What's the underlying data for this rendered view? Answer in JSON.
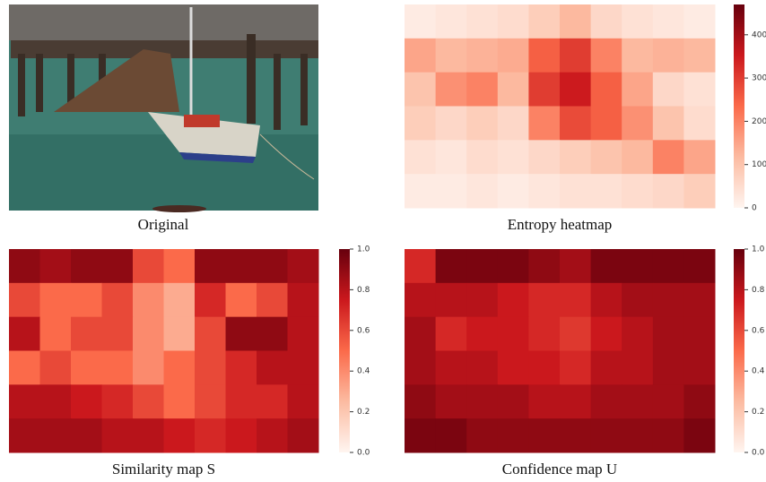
{
  "colormap": [
    "#fff5f0",
    "#fcbba1",
    "#fb6a4a",
    "#cb181d",
    "#67000d"
  ],
  "panels": [
    {
      "caption": "Original"
    },
    {
      "caption": "Entropy heatmap",
      "clim": [
        0,
        470
      ],
      "cticks": [
        0,
        100,
        200,
        300,
        400
      ],
      "values": [
        [
          20,
          30,
          40,
          50,
          80,
          120,
          60,
          40,
          30,
          20
        ],
        [
          150,
          120,
          130,
          140,
          250,
          300,
          200,
          120,
          130,
          120
        ],
        [
          100,
          180,
          200,
          120,
          300,
          350,
          250,
          150,
          60,
          40
        ],
        [
          80,
          60,
          80,
          60,
          200,
          280,
          250,
          180,
          100,
          50
        ],
        [
          40,
          30,
          50,
          40,
          60,
          80,
          100,
          120,
          200,
          150
        ],
        [
          20,
          20,
          30,
          20,
          30,
          40,
          40,
          50,
          60,
          80
        ]
      ]
    },
    {
      "caption": "Similarity map S",
      "clim": [
        0,
        1
      ],
      "cticks": [
        {
          "value": 0,
          "label": "0.0"
        },
        {
          "value": 0.2,
          "label": "0.2"
        },
        {
          "value": 0.4,
          "label": "0.4"
        },
        {
          "value": 0.6,
          "label": "0.6"
        },
        {
          "value": 0.8,
          "label": "0.8"
        },
        {
          "value": 1,
          "label": "1.0"
        }
      ],
      "values": [
        [
          0.9,
          0.85,
          0.9,
          0.9,
          0.6,
          0.5,
          0.9,
          0.9,
          0.9,
          0.85
        ],
        [
          0.6,
          0.5,
          0.5,
          0.6,
          0.4,
          0.3,
          0.7,
          0.5,
          0.6,
          0.8
        ],
        [
          0.8,
          0.5,
          0.6,
          0.6,
          0.4,
          0.3,
          0.6,
          0.9,
          0.9,
          0.8
        ],
        [
          0.5,
          0.6,
          0.5,
          0.5,
          0.4,
          0.5,
          0.6,
          0.7,
          0.8,
          0.8
        ],
        [
          0.8,
          0.8,
          0.75,
          0.7,
          0.6,
          0.5,
          0.6,
          0.7,
          0.7,
          0.8
        ],
        [
          0.85,
          0.85,
          0.85,
          0.8,
          0.8,
          0.75,
          0.7,
          0.75,
          0.8,
          0.85
        ]
      ]
    },
    {
      "caption": "Confidence map U",
      "clim": [
        0,
        1
      ],
      "cticks": [
        {
          "value": 0,
          "label": "0.0"
        },
        {
          "value": 0.2,
          "label": "0.2"
        },
        {
          "value": 0.4,
          "label": "0.4"
        },
        {
          "value": 0.6,
          "label": "0.6"
        },
        {
          "value": 0.8,
          "label": "0.8"
        },
        {
          "value": 1,
          "label": "1.0"
        }
      ],
      "values": [
        [
          0.7,
          0.95,
          0.95,
          0.95,
          0.9,
          0.85,
          0.95,
          0.95,
          0.95,
          0.95
        ],
        [
          0.8,
          0.8,
          0.8,
          0.75,
          0.7,
          0.7,
          0.8,
          0.85,
          0.85,
          0.85
        ],
        [
          0.85,
          0.7,
          0.75,
          0.75,
          0.7,
          0.65,
          0.75,
          0.8,
          0.85,
          0.85
        ],
        [
          0.85,
          0.8,
          0.8,
          0.75,
          0.75,
          0.7,
          0.8,
          0.8,
          0.85,
          0.85
        ],
        [
          0.9,
          0.85,
          0.85,
          0.85,
          0.8,
          0.8,
          0.85,
          0.85,
          0.85,
          0.9
        ],
        [
          0.95,
          0.95,
          0.9,
          0.9,
          0.9,
          0.9,
          0.9,
          0.9,
          0.9,
          0.95
        ]
      ]
    }
  ]
}
